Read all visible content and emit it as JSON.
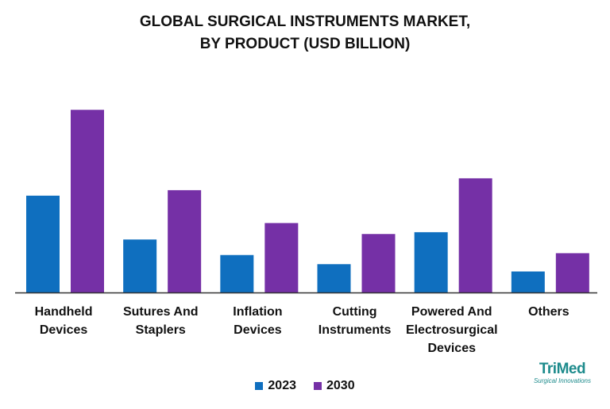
{
  "title_line1": "GLOBAL SURGICAL INSTRUMENTS MARKET,",
  "title_line2": "BY PRODUCT (USD BILLION)",
  "brand": {
    "name": "TriMed",
    "tagline": "Surgical Innovations"
  },
  "colors": {
    "s2023": "#0f6fbf",
    "s2030": "#7530a6",
    "axis": "#333333",
    "brand": "#1d8b8c"
  },
  "chart_data": {
    "type": "bar",
    "title": "GLOBAL SURGICAL INSTRUMENTS MARKET, BY PRODUCT (USD BILLION)",
    "categories": [
      [
        "Handheld",
        "Devices"
      ],
      [
        "Sutures And",
        "Staplers"
      ],
      [
        "Inflation",
        "Devices"
      ],
      [
        "Cutting",
        "Instruments"
      ],
      [
        "Powered And",
        "Electrosurgical",
        "Devices"
      ],
      [
        "Others"
      ]
    ],
    "series": [
      {
        "name": "2023",
        "values": [
          5.3,
          2.9,
          2.05,
          1.55,
          3.3,
          1.15
        ]
      },
      {
        "name": "2030",
        "values": [
          10.0,
          5.6,
          3.8,
          3.2,
          6.25,
          2.15
        ]
      }
    ],
    "ylim": [
      0,
      10.5
    ],
    "grid": false,
    "legend_position": "bottom"
  }
}
